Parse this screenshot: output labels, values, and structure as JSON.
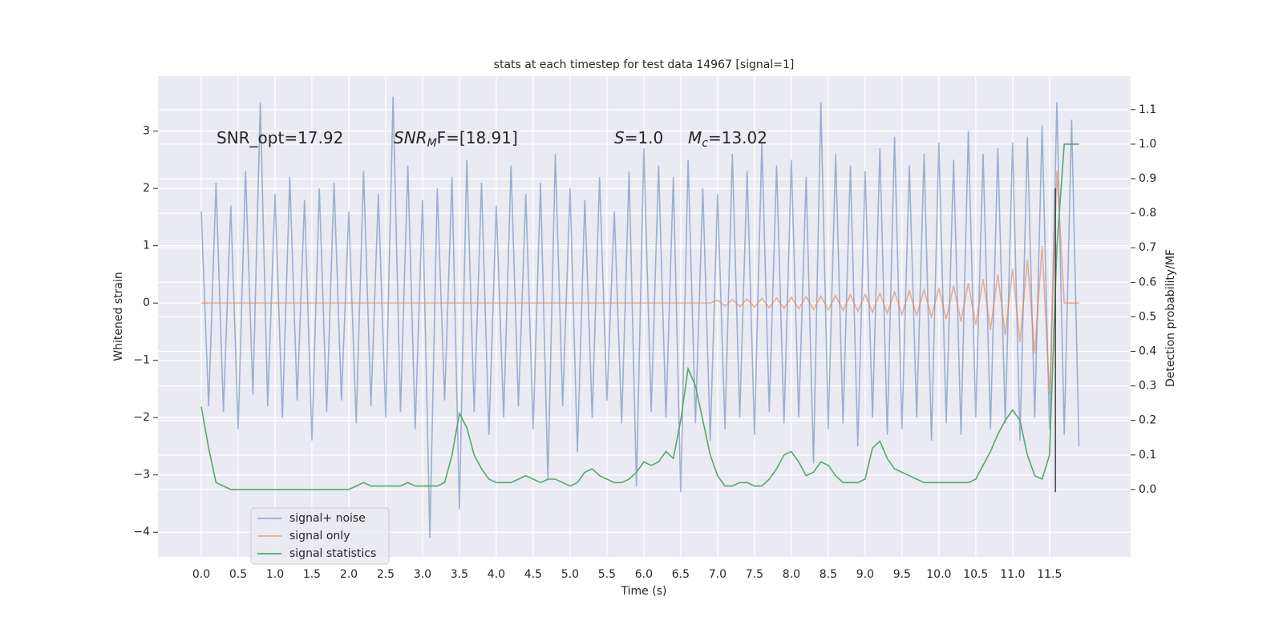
{
  "chart_data": {
    "type": "line",
    "title": "stats at each timestep for test data 14967 [signal=1]",
    "xlabel": "Time (s)",
    "ylabel": "Whitened strain",
    "y2label": "Detection probability/MF",
    "annotations": [
      {
        "base": "SNR_opt=17.92"
      },
      {
        "base": "SNR",
        "sub": "M",
        "rest": "F=[18.91]"
      },
      {
        "base": "S",
        "rest": "=1.0"
      },
      {
        "base": "M",
        "sub": "c",
        "rest": "=13.02"
      }
    ],
    "xlim": [
      -0.587,
      12.6
    ],
    "ylim": [
      -4.43,
      3.96
    ],
    "y2lim": [
      -0.195,
      1.197
    ],
    "xticks": [
      {
        "value": 0,
        "label": "0.0"
      },
      0.5,
      {
        "value": 1,
        "label": "1.0"
      },
      1.5,
      {
        "value": 2,
        "label": "2.0"
      },
      2.5,
      {
        "value": 3,
        "label": "3.0"
      },
      3.5,
      {
        "value": 4,
        "label": "4.0"
      },
      4.5,
      {
        "value": 5,
        "label": "5.0"
      },
      5.5,
      {
        "value": 6,
        "label": "6.0"
      },
      6.5,
      {
        "value": 7,
        "label": "7.0"
      },
      7.5,
      {
        "value": 8,
        "label": "8.0"
      },
      8.5,
      {
        "value": 9,
        "label": "9.0"
      },
      9.5,
      {
        "value": 10,
        "label": "10.0"
      },
      10.5,
      {
        "value": 11,
        "label": "11.0"
      },
      11.5
    ],
    "yticks": [
      {
        "value": -4,
        "label": "−4"
      },
      {
        "value": -3,
        "label": "−3"
      },
      {
        "value": -2,
        "label": "−2"
      },
      {
        "value": -1,
        "label": "−1"
      },
      0,
      1,
      2,
      3
    ],
    "y2ticks": [
      {
        "value": 0,
        "label": "0.0"
      },
      0.1,
      0.2,
      0.3,
      0.4,
      0.5,
      0.6,
      0.7,
      0.8,
      0.9,
      {
        "value": 1,
        "label": "1.0"
      },
      1.1
    ],
    "grid": true,
    "legend": "lower left",
    "x": [
      0.0,
      0.1,
      0.2,
      0.3,
      0.4,
      0.5,
      0.6,
      0.7,
      0.8,
      0.9,
      1.0,
      1.1,
      1.2,
      1.3,
      1.4,
      1.5,
      1.6,
      1.7,
      1.8,
      1.9,
      2.0,
      2.1,
      2.2,
      2.3,
      2.4,
      2.5,
      2.6,
      2.7,
      2.8,
      2.9,
      3.0,
      3.1,
      3.2,
      3.3,
      3.4,
      3.5,
      3.6,
      3.7,
      3.8,
      3.9,
      4.0,
      4.1,
      4.2,
      4.3,
      4.4,
      4.5,
      4.6,
      4.7,
      4.8,
      4.9,
      5.0,
      5.1,
      5.2,
      5.3,
      5.4,
      5.5,
      5.6,
      5.7,
      5.8,
      5.9,
      6.0,
      6.1,
      6.2,
      6.3,
      6.4,
      6.5,
      6.6,
      6.7,
      6.8,
      6.9,
      7.0,
      7.1,
      7.2,
      7.3,
      7.4,
      7.5,
      7.6,
      7.7,
      7.8,
      7.9,
      8.0,
      8.1,
      8.2,
      8.3,
      8.4,
      8.5,
      8.6,
      8.7,
      8.8,
      8.9,
      9.0,
      9.1,
      9.2,
      9.3,
      9.4,
      9.5,
      9.6,
      9.7,
      9.8,
      9.9,
      10.0,
      10.1,
      10.2,
      10.3,
      10.4,
      10.5,
      10.6,
      10.7,
      10.8,
      10.9,
      11.0,
      11.1,
      11.2,
      11.3,
      11.4,
      11.5,
      11.6,
      11.7,
      11.8,
      11.9
    ],
    "series": [
      {
        "name": "signal+ noise",
        "color": "#4c72b0",
        "opacity": 0.5,
        "values": [
          1.6,
          -1.8,
          2.1,
          -1.9,
          1.7,
          -2.2,
          2.3,
          -1.6,
          3.5,
          -1.8,
          1.9,
          -2.0,
          2.2,
          -1.7,
          1.8,
          -2.4,
          2.0,
          -1.9,
          2.1,
          -1.7,
          1.6,
          -2.1,
          2.3,
          -1.8,
          1.9,
          -2.0,
          3.6,
          -1.9,
          2.4,
          -2.2,
          1.8,
          -4.1,
          2.0,
          -1.7,
          2.2,
          -3.6,
          2.5,
          -1.9,
          2.1,
          -2.3,
          1.7,
          -2.0,
          2.4,
          -1.8,
          1.9,
          -2.2,
          2.1,
          -3.1,
          2.6,
          -1.8,
          2.0,
          -2.6,
          1.8,
          -2.0,
          2.2,
          -1.7,
          1.6,
          -2.1,
          2.3,
          -3.2,
          2.7,
          -1.9,
          2.4,
          -2.0,
          2.2,
          -3.3,
          2.5,
          -2.1,
          2.0,
          -2.4,
          1.9,
          -2.2,
          2.6,
          -2.0,
          2.3,
          -2.3,
          2.8,
          -1.9,
          2.4,
          -2.1,
          2.5,
          -2.0,
          2.2,
          -2.8,
          3.5,
          -2.2,
          2.6,
          -2.1,
          2.4,
          -2.5,
          2.3,
          -2.0,
          2.7,
          -2.3,
          2.9,
          -2.2,
          2.4,
          -2.0,
          2.6,
          -2.4,
          2.8,
          -2.1,
          2.5,
          -2.3,
          3.0,
          -2.0,
          2.6,
          -2.2,
          2.7,
          -2.1,
          2.8,
          -2.4,
          2.9,
          -2.0,
          3.1,
          -2.2,
          3.5,
          -2.3,
          3.2,
          -2.5
        ]
      },
      {
        "name": "signal only",
        "color": "#dd8452",
        "opacity": 0.6,
        "values": [
          0,
          0,
          0,
          0,
          0,
          0,
          0,
          0,
          0,
          0,
          0,
          0,
          0,
          0,
          0,
          0,
          0,
          0,
          0,
          0,
          0,
          0,
          0,
          0,
          0,
          0,
          0,
          0,
          0,
          0,
          0,
          0,
          0,
          0,
          0,
          0,
          0,
          0,
          0,
          0,
          0,
          0,
          0,
          0,
          0,
          0,
          0,
          0,
          0,
          0,
          0,
          0,
          0,
          0,
          0,
          0,
          0,
          0,
          0,
          0,
          0,
          0,
          0,
          0,
          0,
          0,
          0,
          0,
          0,
          0,
          0.05,
          -0.05,
          0.06,
          -0.06,
          0.07,
          -0.07,
          0.08,
          -0.08,
          0.09,
          -0.09,
          0.1,
          -0.1,
          0.11,
          -0.11,
          0.12,
          -0.12,
          0.13,
          -0.13,
          0.14,
          -0.14,
          0.15,
          -0.16,
          0.17,
          -0.18,
          0.19,
          -0.2,
          0.21,
          -0.22,
          0.23,
          -0.24,
          0.26,
          -0.28,
          0.3,
          -0.32,
          0.35,
          -0.38,
          0.42,
          -0.46,
          0.5,
          -0.56,
          0.6,
          -0.68,
          0.76,
          -0.88,
          1.0,
          -1.6,
          2.3,
          0,
          0,
          0
        ]
      },
      {
        "name": "signal statistics",
        "color": "#55a868",
        "opacity": 1,
        "axis": "y2",
        "values": [
          0.24,
          0.12,
          0.02,
          0.01,
          0.0,
          0.0,
          0.0,
          0.0,
          0.0,
          0.0,
          0.0,
          0.0,
          0.0,
          0.0,
          0.0,
          0.0,
          0.0,
          0.0,
          0.0,
          0.0,
          0.0,
          0.01,
          0.02,
          0.01,
          0.01,
          0.01,
          0.01,
          0.01,
          0.02,
          0.01,
          0.01,
          0.01,
          0.01,
          0.02,
          0.1,
          0.22,
          0.18,
          0.1,
          0.06,
          0.03,
          0.02,
          0.02,
          0.02,
          0.03,
          0.04,
          0.03,
          0.02,
          0.03,
          0.03,
          0.02,
          0.01,
          0.02,
          0.05,
          0.06,
          0.04,
          0.03,
          0.02,
          0.02,
          0.03,
          0.05,
          0.08,
          0.07,
          0.08,
          0.11,
          0.09,
          0.2,
          0.35,
          0.3,
          0.2,
          0.1,
          0.04,
          0.01,
          0.01,
          0.02,
          0.02,
          0.01,
          0.01,
          0.03,
          0.06,
          0.1,
          0.11,
          0.08,
          0.04,
          0.05,
          0.08,
          0.07,
          0.04,
          0.02,
          0.02,
          0.02,
          0.03,
          0.12,
          0.14,
          0.09,
          0.06,
          0.05,
          0.04,
          0.03,
          0.02,
          0.02,
          0.02,
          0.02,
          0.02,
          0.02,
          0.02,
          0.03,
          0.07,
          0.11,
          0.16,
          0.2,
          0.23,
          0.2,
          0.1,
          0.04,
          0.03,
          0.1,
          0.7,
          1.0,
          1.0,
          1.0
        ]
      }
    ],
    "vline": {
      "x": 11.58,
      "y": [
        -3.3,
        2.0
      ],
      "color": "#444444"
    }
  }
}
